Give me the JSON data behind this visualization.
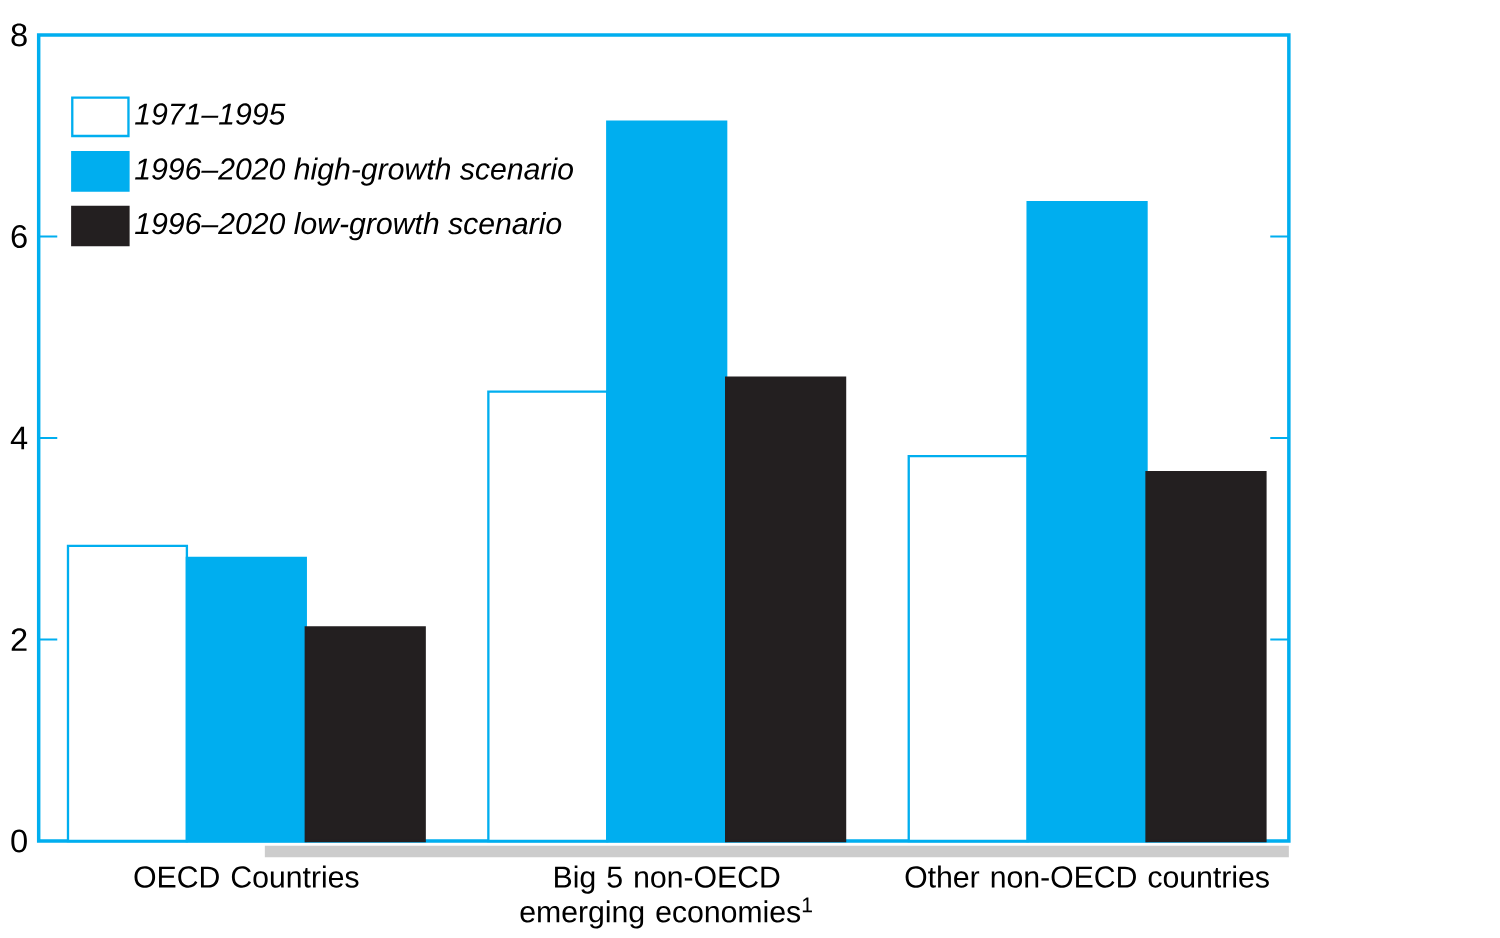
{
  "chart_data": {
    "type": "bar",
    "categories": [
      "OECD Countries",
      "Big 5 non-OECD emerging economies$^{1}$",
      "Other non-OECD countries"
    ],
    "series": [
      {
        "name": "1971–1995",
        "color": "#ffffff",
        "values": [
          2.93,
          4.46,
          3.82
        ]
      },
      {
        "name": "1996–2020 high-growth scenario",
        "color": "#00aeef",
        "values": [
          2.81,
          7.14,
          6.34
        ]
      },
      {
        "name": "1996–2020 low-growth scenario",
        "color": "#231f20",
        "values": [
          2.12,
          4.6,
          3.66
        ]
      }
    ],
    "ylim": [
      0,
      8
    ],
    "yticks": [
      0,
      2,
      4,
      6,
      8
    ],
    "grid": false,
    "legend": "top left"
  }
}
